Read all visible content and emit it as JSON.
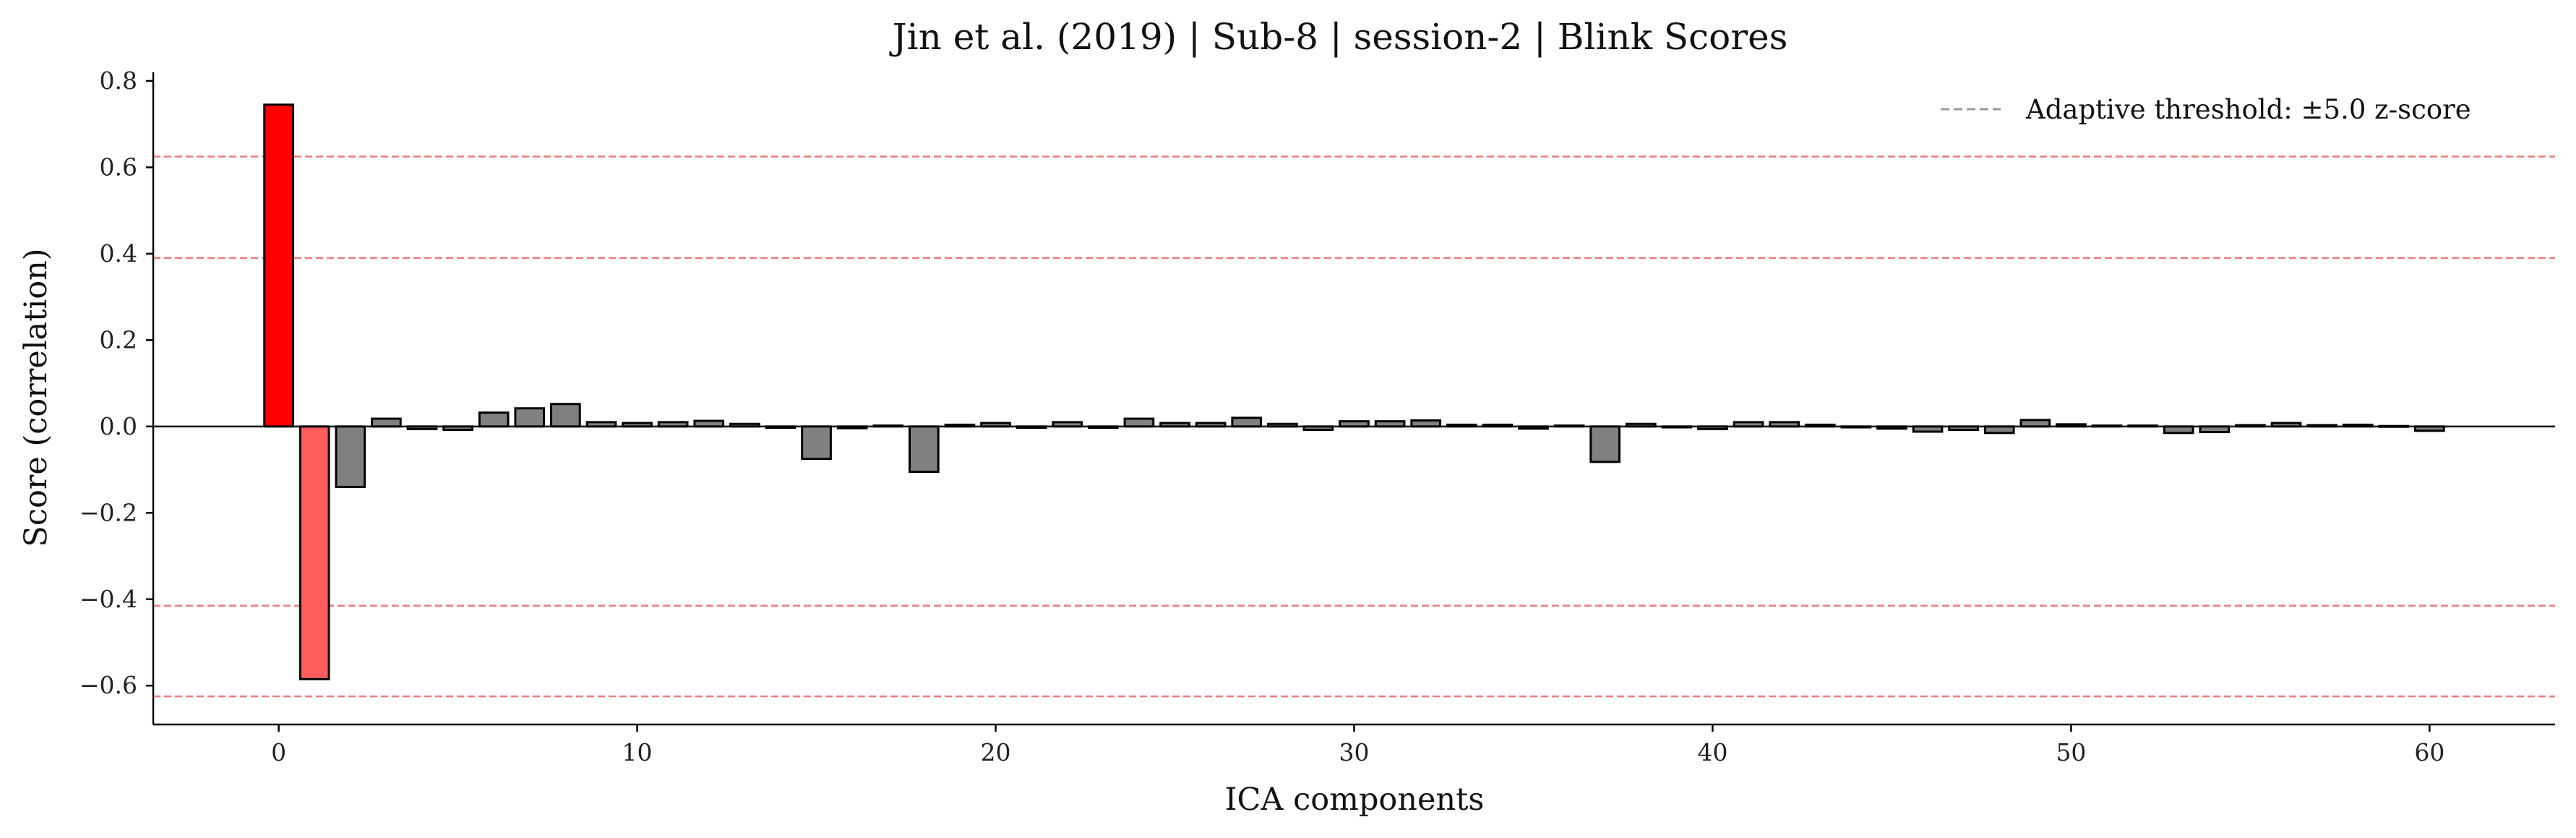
{
  "chart_data": {
    "type": "bar",
    "title": "Jin et al. (2019) | Sub-8 | session-2 | Blink Scores",
    "xlabel": "ICA components",
    "ylabel": "Score (correlation)",
    "xlim": [
      -3.5,
      63.5
    ],
    "ylim": [
      -0.69,
      0.82
    ],
    "xticks": [
      0,
      10,
      20,
      30,
      40,
      50,
      60
    ],
    "yticks": [
      -0.6,
      -0.4,
      -0.2,
      0.0,
      0.2,
      0.4,
      0.6,
      0.8
    ],
    "xtick_labels": [
      "0",
      "10",
      "20",
      "30",
      "40",
      "50",
      "60"
    ],
    "ytick_labels": [
      "−0.6",
      "−0.4",
      "−0.2",
      "0.0",
      "0.2",
      "0.4",
      "0.6",
      "0.8"
    ],
    "x": [
      0,
      1,
      2,
      3,
      4,
      5,
      6,
      7,
      8,
      9,
      10,
      11,
      12,
      13,
      14,
      15,
      16,
      17,
      18,
      19,
      20,
      21,
      22,
      23,
      24,
      25,
      26,
      27,
      28,
      29,
      30,
      31,
      32,
      33,
      34,
      35,
      36,
      37,
      38,
      39,
      40,
      41,
      42,
      43,
      44,
      45,
      46,
      47,
      48,
      49,
      50,
      51,
      52,
      53,
      54,
      55,
      56,
      57,
      58,
      59,
      60
    ],
    "values": [
      0.745,
      -0.585,
      -0.14,
      0.018,
      -0.006,
      -0.008,
      0.032,
      0.042,
      0.052,
      0.01,
      0.008,
      0.01,
      0.013,
      0.006,
      -0.003,
      -0.075,
      -0.004,
      0.002,
      -0.105,
      0.004,
      0.008,
      -0.003,
      0.01,
      -0.003,
      0.018,
      0.008,
      0.008,
      0.02,
      0.006,
      -0.008,
      0.012,
      0.012,
      0.014,
      0.004,
      0.004,
      -0.005,
      0.002,
      -0.082,
      0.006,
      -0.002,
      -0.006,
      0.01,
      0.01,
      0.004,
      -0.002,
      -0.005,
      -0.012,
      -0.008,
      -0.015,
      0.015,
      0.005,
      0.002,
      0.002,
      -0.015,
      -0.013,
      0.003,
      0.008,
      0.003,
      0.004,
      0.001,
      -0.01
    ],
    "bar_colors": {
      "default": "#808080",
      "positive_flagged": "#ff0000",
      "negative_flagged": "#ff5c5c",
      "edge": "#000000"
    },
    "flagged": {
      "0": "positive_flagged",
      "1": "negative_flagged"
    },
    "threshold_lines": [
      0.625,
      0.39,
      -0.415,
      -0.625
    ],
    "threshold_color": "#e8514f",
    "legend": {
      "label": "Adaptive threshold: ±5.0 z-score",
      "line_color": "#999999",
      "placement": "upper right"
    },
    "grid": false
  }
}
